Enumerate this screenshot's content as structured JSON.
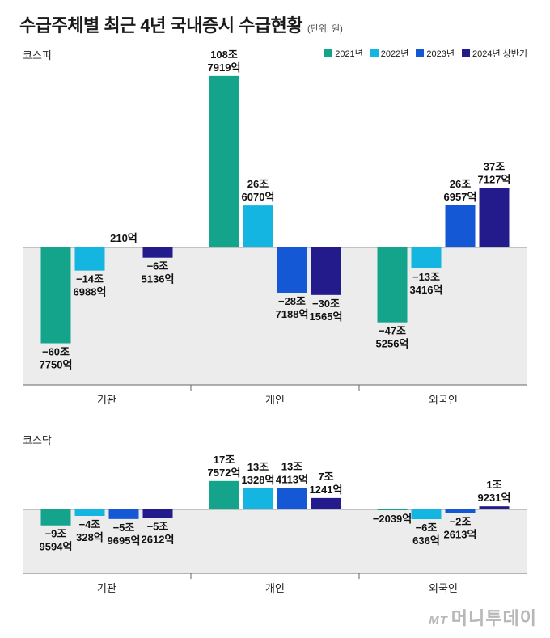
{
  "title": "수급주체별 최근 4년 국내증시 수급현황",
  "unit": "(단위: 원)",
  "legend": [
    {
      "label": "2021년",
      "color": "#14a38b"
    },
    {
      "label": "2022년",
      "color": "#14b5e0"
    },
    {
      "label": "2023년",
      "color": "#1558d6"
    },
    {
      "label": "2024년 상반기",
      "color": "#231a8c"
    }
  ],
  "watermark": {
    "mt": "MT",
    "text": "머니투데이"
  },
  "chart_data": [
    {
      "type": "bar",
      "panel": "코스피",
      "categories": [
        "기관",
        "개인",
        "외국인"
      ],
      "series": [
        {
          "name": "2021년",
          "values": [
            -607750,
            1087919,
            -475256
          ],
          "labels": [
            [
              "−60조",
              "7750억"
            ],
            [
              "108조",
              "7919억"
            ],
            [
              "−47조",
              "5256억"
            ]
          ]
        },
        {
          "name": "2022년",
          "values": [
            -146988,
            266070,
            -133416
          ],
          "labels": [
            [
              "−14조",
              "6988억"
            ],
            [
              "26조",
              "6070억"
            ],
            [
              "−13조",
              "3416억"
            ]
          ]
        },
        {
          "name": "2023년",
          "values": [
            210,
            -287188,
            266957
          ],
          "labels": [
            [
              "210억"
            ],
            [
              "−28조",
              "7188억"
            ],
            [
              "26조",
              "6957억"
            ]
          ]
        },
        {
          "name": "2024년 상반기",
          "values": [
            -65136,
            -301565,
            377127
          ],
          "labels": [
            [
              "−6조",
              "5136억"
            ],
            [
              "−30조",
              "1565억"
            ],
            [
              "37조",
              "7127억"
            ]
          ]
        }
      ],
      "unit": "억원"
    },
    {
      "type": "bar",
      "panel": "코스닥",
      "categories": [
        "기관",
        "개인",
        "외국인"
      ],
      "series": [
        {
          "name": "2021년",
          "values": [
            -99594,
            177572,
            -2039
          ],
          "labels": [
            [
              "−9조",
              "9594억"
            ],
            [
              "17조",
              "7572억"
            ],
            [
              "−2039억"
            ]
          ]
        },
        {
          "name": "2022년",
          "values": [
            -40328,
            131328,
            -60636
          ],
          "labels": [
            [
              "−4조",
              "328억"
            ],
            [
              "13조",
              "1328억"
            ],
            [
              "−6조",
              "636억"
            ]
          ]
        },
        {
          "name": "2023년",
          "values": [
            -59695,
            134113,
            -22613
          ],
          "labels": [
            [
              "−5조",
              "9695억"
            ],
            [
              "13조",
              "4113억"
            ],
            [
              "−2조",
              "2613억"
            ]
          ]
        },
        {
          "name": "2024년 상반기",
          "values": [
            -52612,
            71241,
            19231
          ],
          "labels": [
            [
              "−5조",
              "2612억"
            ],
            [
              "7조",
              "1241억"
            ],
            [
              "1조",
              "9231억"
            ]
          ]
        }
      ],
      "unit": "억원"
    }
  ]
}
